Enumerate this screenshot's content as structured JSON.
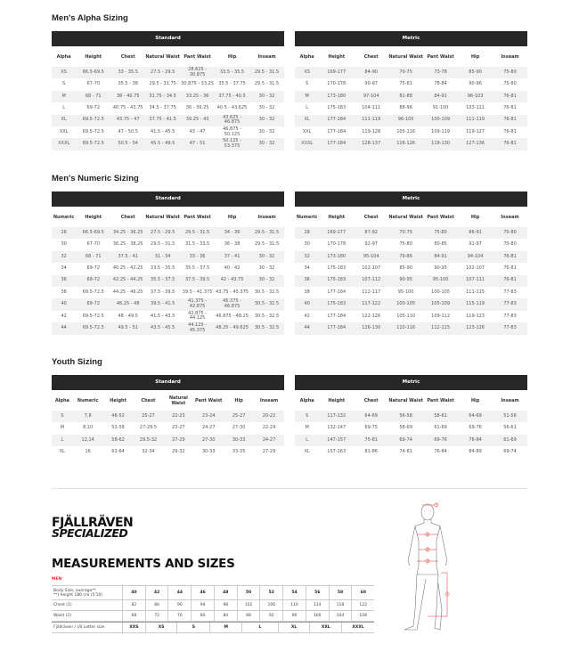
{
  "sections": [
    {
      "title": "Men's Alpha Sizing",
      "tables": [
        {
          "label": "Standard",
          "headers": [
            "Alpha",
            "Height",
            "Chest",
            "Natural Waist",
            "Pant Waist",
            "Hip",
            "Inseam"
          ],
          "rows": [
            [
              "XS",
              "66.5-69.5",
              "33 - 35.5",
              "27.5 - 29.5",
              "28.625 - 30.875",
              "33.5 - 35.5",
              "29.5 - 31.5"
            ],
            [
              "S",
              "67-70",
              "35.5 - 38",
              "29.5 - 31.75",
              "30.875 - 33.25",
              "35.5 - 37.75",
              "29.5 - 31.5"
            ],
            [
              "M",
              "68 - 71",
              "38 - 40.75",
              "31.75 - 34.5",
              "33.25 - 36",
              "37.75 - 40.5",
              "30 - 32"
            ],
            [
              "L",
              "69-72",
              "40.75 - 43.75",
              "34.5 - 37.75",
              "36 - 39.25",
              "40.5 - 43.625",
              "30 - 32"
            ],
            [
              "XL",
              "69.5-72.5",
              "43.75 - 47",
              "37.75 - 41.5",
              "39.25 - 43",
              "43.625 - 46.875",
              "30 - 32"
            ],
            [
              "XXL",
              "69.5-72.5",
              "47 - 50.5",
              "41.5 - 45.5",
              "43 - 47",
              "46.875 - 50.125",
              "30 - 32"
            ],
            [
              "XXXL",
              "69.5-72.5",
              "50.5 - 54",
              "45.5 - 49.5",
              "47 - 51",
              "50.125 - 53.375",
              "30 - 32"
            ]
          ]
        },
        {
          "label": "Metric",
          "headers": [
            "Alpha",
            "Height",
            "Chest",
            "Natural Waist",
            "Pant Waist",
            "Hip",
            "Inseam"
          ],
          "rows": [
            [
              "XS",
              "169-177",
              "84-90",
              "70-75",
              "73-78",
              "85-90",
              "75-80"
            ],
            [
              "S",
              "170-178",
              "90-97",
              "75-81",
              "78-84",
              "90-96",
              "75-80"
            ],
            [
              "M",
              "173-180",
              "97-104",
              "81-88",
              "84-91",
              "96-103",
              "76-81"
            ],
            [
              "L",
              "175-183",
              "104-111",
              "88-96",
              "91-100",
              "103-111",
              "76-81"
            ],
            [
              "XL",
              "177-184",
              "111-119",
              "96-105",
              "100-109",
              "111-119",
              "76-81"
            ],
            [
              "XXL",
              "177-184",
              "119-128",
              "105-116",
              "109-119",
              "119-127",
              "76-81"
            ],
            [
              "XXXL",
              "177-184",
              "128-137",
              "116-126",
              "119-130",
              "127-136",
              "76-81"
            ]
          ]
        }
      ]
    },
    {
      "title": "Men's Numeric Sizing",
      "tables": [
        {
          "label": "Standard",
          "headers": [
            "Numeric",
            "Height",
            "Chest",
            "Natural Waist",
            "Pant Waist",
            "Hip",
            "Inseam"
          ],
          "rows": [
            [
              "28",
              "66.5-69.5",
              "34.25 - 36.25",
              "27.5 - 29.5",
              "29.5 - 31.5",
              "34 - 36",
              "29.5 - 31.5"
            ],
            [
              "30",
              "67-70",
              "36.25 - 38.25",
              "29.5 - 31.5",
              "31.5 - 33.5",
              "36 - 38",
              "29.5 - 31.5"
            ],
            [
              "32",
              "68 - 71",
              "37.5 - 41",
              "31 - 34",
              "33 - 36",
              "37 - 41",
              "30 - 32"
            ],
            [
              "34",
              "69-72",
              "40.25 - 42.25",
              "33.5 - 35.5",
              "35.5 - 37.5",
              "40 - 42",
              "30 - 32"
            ],
            [
              "36",
              "69-72",
              "42.25 - 44.25",
              "35.5 - 37.5",
              "37.5 - 39.5",
              "42 - 43.75",
              "30 - 32"
            ],
            [
              "38",
              "69.5-72.5",
              "44.25 - 46.25",
              "37.5 - 39.5",
              "39.5 - 41.375",
              "43.75 - 45.375",
              "30.5 - 32.5"
            ],
            [
              "40",
              "69-72",
              "46.25 - 48",
              "39.5 - 41.5",
              "41.375 - 42.875",
              "45.375 - 46.875",
              "30.5 - 32.5"
            ],
            [
              "42",
              "69.5-72.5",
              "48 - 49.5",
              "41.5 - 43.5",
              "42.875 - 44.125",
              "46.875 - 48.25",
              "30.5 - 32.5"
            ],
            [
              "44",
              "69.5-72.5",
              "49.5 - 51",
              "43.5 - 45.5",
              "44.125 - 45.375",
              "48.25 - 49.625",
              "30.5 - 32.5"
            ]
          ]
        },
        {
          "label": "Metric",
          "headers": [
            "Numeric",
            "Height",
            "Chest",
            "Natural Waist",
            "Pant Waist",
            "Hip",
            "Inseam"
          ],
          "rows": [
            [
              "28",
              "169-177",
              "87-92",
              "70-75",
              "75-80",
              "86-91",
              "75-80"
            ],
            [
              "30",
              "170-178",
              "92-97",
              "75-80",
              "80-85",
              "91-97",
              "75-80"
            ],
            [
              "32",
              "173-180",
              "95-104",
              "79-86",
              "84-91",
              "94-104",
              "76-81"
            ],
            [
              "34",
              "175-183",
              "102-107",
              "85-90",
              "90-95",
              "102-107",
              "76-81"
            ],
            [
              "36",
              "175-183",
              "107-112",
              "90-95",
              "95-100",
              "107-111",
              "76-81"
            ],
            [
              "38",
              "177-184",
              "112-117",
              "95-100",
              "100-105",
              "111-115",
              "77-83"
            ],
            [
              "40",
              "175-183",
              "117-122",
              "100-105",
              "105-109",
              "115-119",
              "77-83"
            ],
            [
              "42",
              "177-184",
              "122-126",
              "105-110",
              "109-112",
              "119-123",
              "77-83"
            ],
            [
              "44",
              "177-184",
              "126-130",
              "110-116",
              "112-115",
              "123-126",
              "77-83"
            ]
          ]
        }
      ]
    },
    {
      "title": "Youth Sizing",
      "tables": [
        {
          "label": "Standard",
          "headers": [
            "Alpha",
            "Numeric",
            "Height",
            "Chest",
            "Natural Waist",
            "Pant Waist",
            "Hip",
            "Inseam"
          ],
          "rows": [
            [
              "S",
              "7,8",
              "46-52",
              "25-27",
              "22-23",
              "23-24",
              "25-27",
              "20-22"
            ],
            [
              "M",
              "8,10",
              "52-58",
              "27-29.5",
              "23-27",
              "24-27",
              "27-30",
              "22-24"
            ],
            [
              "L",
              "12,14",
              "58-62",
              "29.5-32",
              "27-29",
              "27-30",
              "30-33",
              "24-27"
            ],
            [
              "XL",
              "16",
              "62-64",
              "32-34",
              "29-32",
              "30-33",
              "33-35",
              "27-29"
            ]
          ]
        },
        {
          "label": "Metric",
          "headers": [
            "Alpha",
            "Height",
            "Chest",
            "Natural Waist",
            "Pant Waist",
            "Hip",
            "Inseam"
          ],
          "rows": [
            [
              "S",
              "117-132",
              "64-69",
              "56-58",
              "58-61",
              "64-69",
              "51-56"
            ],
            [
              "M",
              "132-147",
              "69-75",
              "58-69",
              "61-69",
              "69-76",
              "56-61"
            ],
            [
              "L",
              "147-157",
              "75-81",
              "69-74",
              "69-76",
              "76-84",
              "61-69"
            ],
            [
              "XL",
              "157-163",
              "81-86",
              "74-81",
              "76-84",
              "84-89",
              "69-74"
            ]
          ]
        }
      ]
    }
  ],
  "measurements": {
    "logo_line1": "FJÄLLRÄVEN",
    "logo_line2": "SPECIALIZED",
    "title": "MEASUREMENTS AND SIZES",
    "group": "MEN",
    "body_size_label": "Body Size, average**",
    "body_size_note": "**) height 180 cm (5'10)",
    "body_sizes": [
      "40",
      "42",
      "44",
      "46",
      "48",
      "50",
      "52",
      "54",
      "56",
      "58",
      "60"
    ],
    "chest_label": "Chest (1)",
    "chest": [
      "82",
      "86",
      "90",
      "94",
      "98",
      "102",
      "106",
      "110",
      "114",
      "118",
      "122"
    ],
    "waist_label": "Waist (2)",
    "waist": [
      "68",
      "72",
      "76",
      "80",
      "84",
      "88",
      "92",
      "96",
      "100",
      "104",
      "108"
    ],
    "letter_label": "Fjällräven / US Letter size",
    "letter_sizes": [
      "XXS",
      "XS",
      "S",
      "M",
      "L",
      "XL",
      "XXL",
      "XXXL"
    ],
    "figure_markers": [
      "1",
      "2",
      "3",
      "4",
      "5"
    ]
  },
  "colors": {
    "header_bar": "#272727",
    "accent": "#e0302a",
    "row_alt": "#f1f1f1"
  }
}
